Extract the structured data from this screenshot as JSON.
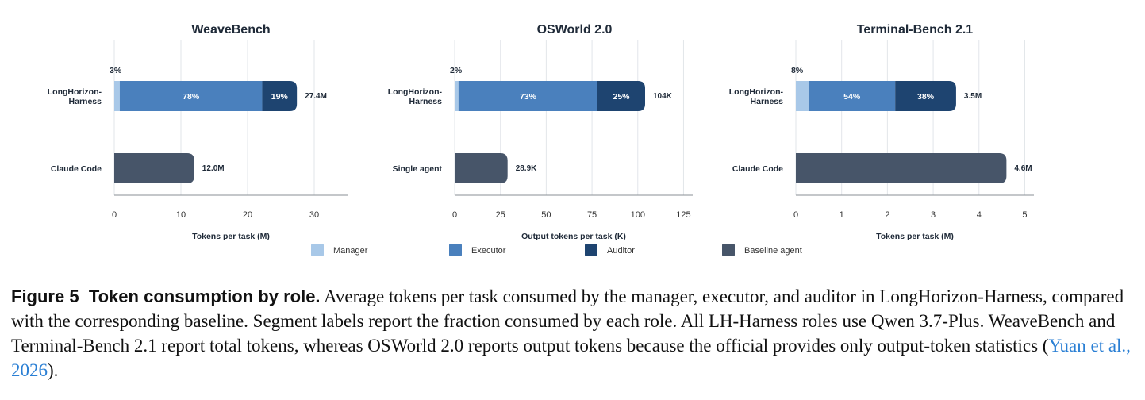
{
  "chart_data": [
    {
      "type": "bar",
      "orientation": "horizontal",
      "stacked": true,
      "title": "WeaveBench",
      "xlabel": "Tokens per task (M)",
      "xlim": [
        0,
        35
      ],
      "xticks": [
        0,
        10,
        20,
        30
      ],
      "grid": true,
      "categories": [
        "LongHorizon-\nHarness",
        "Claude Code"
      ],
      "rows": [
        {
          "category": "LongHorizon-\nHarness",
          "total": 27.4,
          "total_label": "27.4M",
          "segments": [
            {
              "role": "Manager",
              "percent": 3,
              "label": "3%"
            },
            {
              "role": "Executor",
              "percent": 78,
              "label": "78%"
            },
            {
              "role": "Auditor",
              "percent": 19,
              "label": "19%"
            }
          ]
        },
        {
          "category": "Claude Code",
          "total": 12.0,
          "total_label": "12.0M",
          "segments": [
            {
              "role": "Baseline agent",
              "percent": 100,
              "label": ""
            }
          ]
        }
      ]
    },
    {
      "type": "bar",
      "orientation": "horizontal",
      "stacked": true,
      "title": "OSWorld 2.0",
      "xlabel": "Output tokens per task (K)",
      "xlim": [
        0,
        130
      ],
      "xticks": [
        0,
        25,
        50,
        75,
        100,
        125
      ],
      "grid": true,
      "categories": [
        "LongHorizon-\nHarness",
        "Single agent"
      ],
      "rows": [
        {
          "category": "LongHorizon-\nHarness",
          "total": 104,
          "total_label": "104K",
          "segments": [
            {
              "role": "Manager",
              "percent": 2,
              "label": "2%"
            },
            {
              "role": "Executor",
              "percent": 73,
              "label": "73%"
            },
            {
              "role": "Auditor",
              "percent": 25,
              "label": "25%"
            }
          ]
        },
        {
          "category": "Single agent",
          "total": 28.9,
          "total_label": "28.9K",
          "segments": [
            {
              "role": "Baseline agent",
              "percent": 100,
              "label": ""
            }
          ]
        }
      ]
    },
    {
      "type": "bar",
      "orientation": "horizontal",
      "stacked": true,
      "title": "Terminal-Bench 2.1",
      "xlabel": "Tokens per task (M)",
      "xlim": [
        0,
        5.2
      ],
      "xticks": [
        0,
        1,
        2,
        3,
        4,
        5
      ],
      "grid": true,
      "categories": [
        "LongHorizon-\nHarness",
        "Claude Code"
      ],
      "rows": [
        {
          "category": "LongHorizon-\nHarness",
          "total": 3.5,
          "total_label": "3.5M",
          "segments": [
            {
              "role": "Manager",
              "percent": 8,
              "label": "8%"
            },
            {
              "role": "Executor",
              "percent": 54,
              "label": "54%"
            },
            {
              "role": "Auditor",
              "percent": 38,
              "label": "38%"
            }
          ]
        },
        {
          "category": "Claude Code",
          "total": 4.6,
          "total_label": "4.6M",
          "segments": [
            {
              "role": "Baseline agent",
              "percent": 100,
              "label": ""
            }
          ]
        }
      ]
    }
  ],
  "legend": {
    "placement": "bottom",
    "items": [
      {
        "name": "Manager",
        "color": "#a8c8e8"
      },
      {
        "name": "Executor",
        "color": "#4a80bd"
      },
      {
        "name": "Auditor",
        "color": "#1e4470"
      },
      {
        "name": "Baseline agent",
        "color": "#475569"
      }
    ]
  },
  "colors": {
    "Manager": "#a8c8e8",
    "Executor": "#4a80bd",
    "Auditor": "#1e4470",
    "Baseline agent": "#475569",
    "grid": "#e2e6ea",
    "axis": "#8a8f96"
  },
  "caption": {
    "label": "Figure 5",
    "title": "Token consumption by role.",
    "body": "Average tokens per task consumed by the manager, executor, and auditor in LongHorizon-Harness, compared with the corresponding baseline. Segment labels report the fraction consumed by each role. All LH-Harness roles use Qwen 3.7-Plus. WeaveBench and Terminal-Bench 2.1 report total tokens, whereas OSWorld 2.0 reports output tokens because the official provides only output-token statistics (",
    "citation": "Yuan et al., 2026",
    "end": ")."
  }
}
